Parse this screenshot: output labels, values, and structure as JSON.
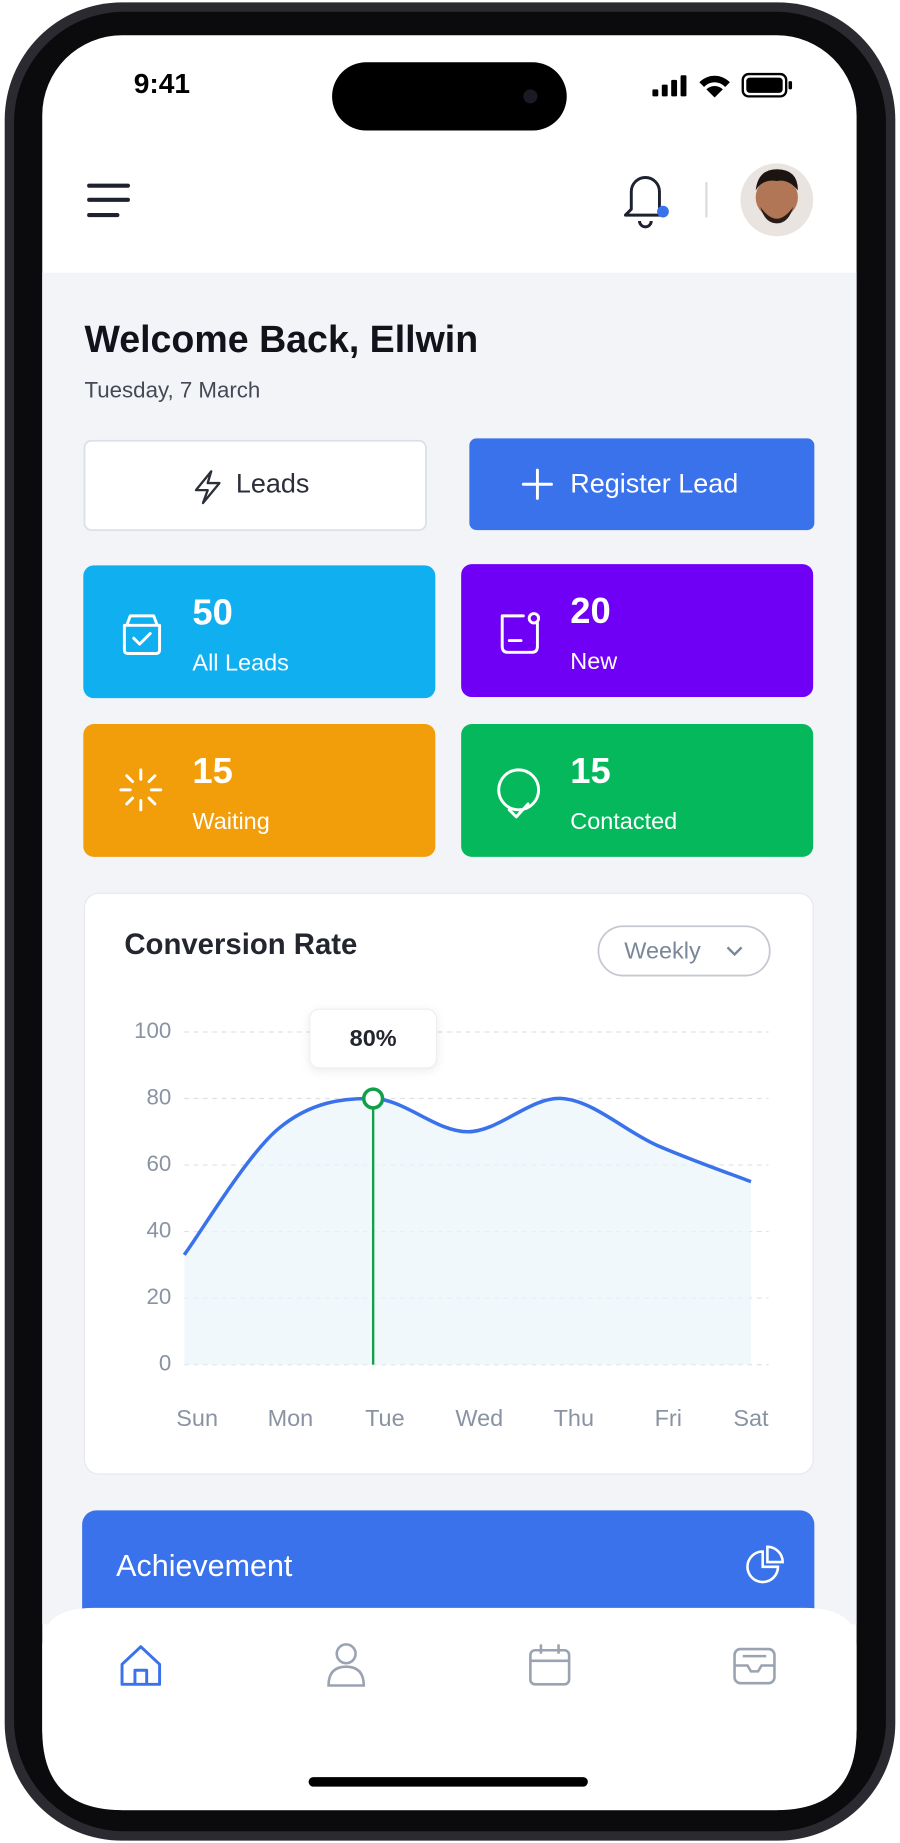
{
  "status": {
    "time": "9:41"
  },
  "greeting": {
    "title": "Welcome Back, Ellwin",
    "date": "Tuesday, 7 March"
  },
  "buttons": [
    "Leads",
    "Register Lead"
  ],
  "stats": [
    {
      "value": 50,
      "label": "All Leads",
      "color": "#10aff0"
    },
    {
      "value": 20,
      "label": "New",
      "color": "#7000f5"
    },
    {
      "value": 15,
      "label": "Waiting",
      "color": "#f29d0a"
    },
    {
      "value": 15,
      "label": "Contacted",
      "color": "#06b85c"
    }
  ],
  "chart_data": {
    "type": "line",
    "title": "Conversion Rate",
    "filter": "Weekly",
    "categories": [
      "Sun",
      "Mon",
      "Tue",
      "Wed",
      "Thu",
      "Fri",
      "Sat"
    ],
    "values": [
      33,
      71,
      80,
      70,
      80,
      66,
      55
    ],
    "value_labels": [
      null,
      null,
      "80%",
      null,
      null,
      null,
      null
    ],
    "color": "#3a72ec",
    "ylim": [
      0,
      100
    ],
    "yticks": [
      0,
      20,
      40,
      60,
      80,
      100
    ],
    "grid": true
  },
  "achievement": {
    "title": "Achievement"
  }
}
